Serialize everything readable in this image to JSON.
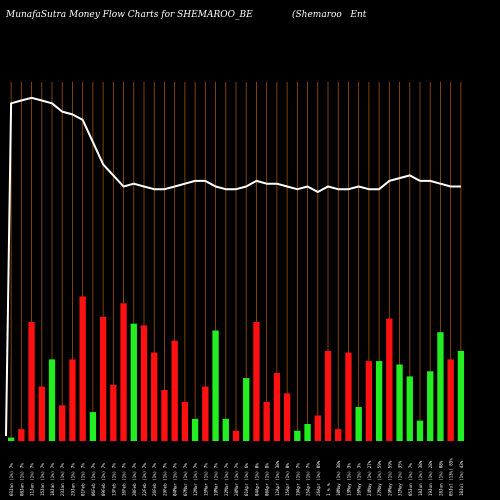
{
  "header": {
    "title": "MunafaSutra  Money Flow  Charts for SHEMAROO_BE",
    "company": "(Shemaroo   Ent"
  },
  "colors": {
    "background": "#000000",
    "up": "#22ee22",
    "down": "#ff1111",
    "grid": "#a0500a",
    "line": "#ffffff",
    "text": "#ffffff"
  },
  "chart_data": {
    "type": "bar",
    "title": "MunafaSutra  Money Flow  Charts for SHEMAROO_BE",
    "categories": [
      "18Jul (1%) 43%",
      "05Jul (13%) 85%",
      "28Jun (1%) 08%",
      "19Jun (1%) 28%",
      "18Jun (1%) 38%",
      "05Jun (1%) 7%",
      "31May (1%) 35%",
      "29May (1%) 59%",
      "27May (1%) 59%",
      "24May (1%) 27%",
      "16May (1%) 3%",
      "13May (1%) 3%",
      "10May (1%) 38%",
      "1 % %",
      "26Apr (1%) 09%",
      "25Apr (1%) 7%",
      "19Apr (1%) 7%",
      "15Apr (1%) 0%",
      "12Apr (1%) 38%",
      "08Apr (1%) 8%",
      "04Apr (1%) 0%",
      "01Apr (1%) 6%",
      "28Mar (1%) 7%",
      "22Mar (1%) 7%",
      "19Mar (1%) 7%",
      "15Mar (1%) 7%",
      "12Mar (1%) 7%",
      "07Mar (1%) 7%",
      "04Mar (1%) 7%",
      "29Feb (1%) 7%",
      "26Feb (1%) 7%",
      "22Feb (1%) 7%",
      "20Feb (1%) 7%",
      "16Feb (1%) 7%",
      "13Feb (1%) 7%",
      "09Feb (1%) 7%",
      "06Feb (1%) 7%",
      "01Feb (1%) 7%",
      "29Jan (1%) 7%",
      "23Jan (1%) 7%",
      "18Jan (1%) 7%",
      "15Jan (1%) 7%",
      "11Jan (1%) 7%",
      "08Jan (1%) 7%",
      "03Jan (1%) 7%"
    ],
    "series": [
      {
        "values": [
          53,
          48,
          64,
          41,
          12,
          38,
          45,
          72,
          47,
          47,
          20,
          52,
          7,
          53,
          15,
          10,
          6,
          28,
          40,
          23,
          70,
          37,
          6,
          13,
          65,
          32,
          13,
          23,
          59,
          30,
          52,
          68,
          69,
          81,
          33,
          73,
          17,
          85,
          48,
          21,
          48,
          32,
          70,
          7,
          2
        ],
        "colors": [
          "g",
          "r",
          "g",
          "g",
          "g",
          "g",
          "g",
          "r",
          "g",
          "r",
          "g",
          "r",
          "r",
          "r",
          "r",
          "g",
          "g",
          "r",
          "r",
          "r",
          "r",
          "g",
          "r",
          "g",
          "g",
          "r",
          "g",
          "r",
          "r",
          "r",
          "r",
          "r",
          "g",
          "r",
          "r",
          "r",
          "g",
          "r",
          "r",
          "r",
          "g",
          "r",
          "r",
          "r",
          "g"
        ],
        "order": "right-to-left"
      },
      {
        "label": "money flow line",
        "values": [
          22,
          22,
          23,
          24,
          24,
          26,
          25,
          24,
          21,
          21,
          22,
          21,
          21,
          22,
          20,
          22,
          21,
          22,
          23,
          23,
          24,
          22,
          21,
          21,
          22,
          24,
          24,
          23,
          22,
          21,
          21,
          22,
          23,
          22,
          26,
          30,
          38,
          46,
          48,
          49,
          52,
          53,
          54,
          53,
          52
        ],
        "order": "right-to-left"
      }
    ],
    "note_bar_heights": "bar values as relative money flow volume units (0-100 scale of chart)",
    "grid": true
  }
}
